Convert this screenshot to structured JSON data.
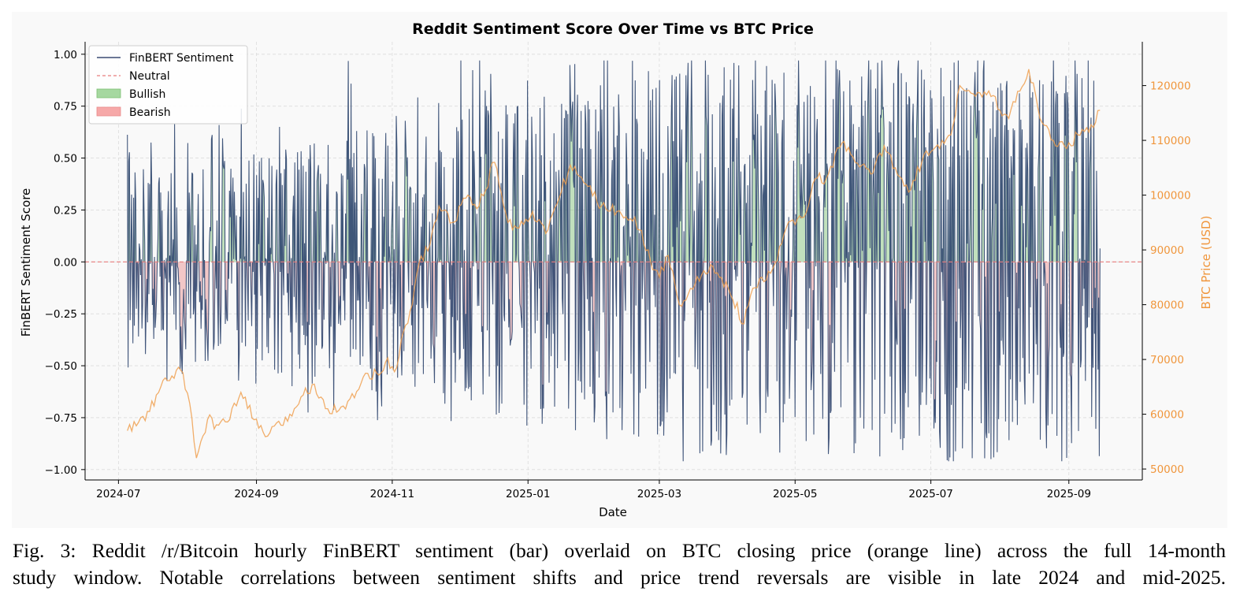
{
  "chart_data": {
    "type": "line",
    "title": "Reddit Sentiment Score Over Time vs BTC Price",
    "xlabel": "Date",
    "ylabel": "FinBERT Sentiment Score",
    "y2label": "BTC Price (USD)",
    "xlim": [
      "2024-06-16",
      "2025-10-04"
    ],
    "ylim": [
      -1.05,
      1.06
    ],
    "y2lim": [
      48000,
      128000
    ],
    "x_ticks": [
      "2024-07",
      "2024-09",
      "2024-11",
      "2025-01",
      "2025-03",
      "2025-05",
      "2025-07",
      "2025-09"
    ],
    "y_ticks": [
      -1.0,
      -0.75,
      -0.5,
      -0.25,
      0.0,
      0.25,
      0.5,
      0.75,
      1.0
    ],
    "y_tick_labels": [
      "−1.00",
      "−0.75",
      "−0.50",
      "−0.25",
      "0.00",
      "0.25",
      "0.50",
      "0.75",
      "1.00"
    ],
    "y2_ticks": [
      50000,
      60000,
      70000,
      80000,
      90000,
      100000,
      110000,
      120000
    ],
    "grid": true,
    "legend_position": "top-left",
    "legend": [
      "FinBERT Sentiment",
      "Neutral",
      "Bullish",
      "Bearish"
    ],
    "neutral_line": 0.0,
    "sentiment_range": [
      "2024-07-05",
      "2025-09-15"
    ],
    "sentiment_bounds": [
      -0.96,
      0.97
    ],
    "series": [
      {
        "name": "BTC Price (USD)",
        "axis": "right",
        "x": [
          "2024-07-05",
          "2024-07-10",
          "2024-07-15",
          "2024-07-20",
          "2024-07-25",
          "2024-07-29",
          "2024-08-02",
          "2024-08-05",
          "2024-08-10",
          "2024-08-15",
          "2024-08-20",
          "2024-08-25",
          "2024-08-31",
          "2024-09-06",
          "2024-09-12",
          "2024-09-18",
          "2024-09-22",
          "2024-09-27",
          "2024-10-03",
          "2024-10-10",
          "2024-10-15",
          "2024-10-20",
          "2024-10-25",
          "2024-10-29",
          "2024-11-03",
          "2024-11-06",
          "2024-11-10",
          "2024-11-13",
          "2024-11-18",
          "2024-11-22",
          "2024-11-28",
          "2024-12-05",
          "2024-12-10",
          "2024-12-17",
          "2024-12-23",
          "2024-12-28",
          "2025-01-03",
          "2025-01-09",
          "2025-01-15",
          "2025-01-20",
          "2025-01-27",
          "2025-02-03",
          "2025-02-10",
          "2025-02-18",
          "2025-02-25",
          "2025-03-01",
          "2025-03-05",
          "2025-03-10",
          "2025-03-15",
          "2025-03-25",
          "2025-04-01",
          "2025-04-08",
          "2025-04-12",
          "2025-04-18",
          "2025-04-22",
          "2025-04-27",
          "2025-05-05",
          "2025-05-10",
          "2025-05-15",
          "2025-05-22",
          "2025-05-28",
          "2025-06-05",
          "2025-06-10",
          "2025-06-15",
          "2025-06-22",
          "2025-06-28",
          "2025-07-05",
          "2025-07-10",
          "2025-07-14",
          "2025-07-20",
          "2025-07-28",
          "2025-08-05",
          "2025-08-10",
          "2025-08-14",
          "2025-08-19",
          "2025-08-25",
          "2025-08-31",
          "2025-09-05",
          "2025-09-10",
          "2025-09-15"
        ],
        "values": [
          57000,
          58500,
          60500,
          65000,
          67000,
          68000,
          62000,
          52000,
          59000,
          58000,
          59000,
          64000,
          59000,
          56000,
          58000,
          61000,
          63500,
          65500,
          61000,
          61500,
          63000,
          67500,
          67500,
          69500,
          68500,
          75000,
          80000,
          87500,
          91000,
          98000,
          95000,
          100000,
          98000,
          106000,
          95000,
          94000,
          97000,
          93000,
          99500,
          105500,
          102000,
          98000,
          97000,
          96000,
          88000,
          85000,
          89000,
          80000,
          83000,
          87000,
          83000,
          76500,
          83000,
          84500,
          87500,
          94000,
          96000,
          103000,
          103000,
          109500,
          106000,
          104000,
          109000,
          105000,
          101000,
          107500,
          108500,
          111000,
          120000,
          118500,
          118000,
          114000,
          119000,
          123000,
          114000,
          110000,
          108500,
          111000,
          111500,
          115500
        ]
      }
    ]
  },
  "caption": "Fig. 3: Reddit /r/Bitcoin hourly FinBERT sentiment (bar) overlaid on BTC closing price (orange line) across the full 14-month study window. Notable correlations between sentiment shifts and price trend reversals are visible in late 2024 and mid-2025.",
  "caption_line1": "Fig. 3: Reddit /r/Bitcoin hourly FinBERT sentiment (bar) overlaid on BTC closing price (orange line) across the full 14-month",
  "caption_line2": "study window. Notable correlations between sentiment shifts and price trend reversals are visible in late 2024 and mid-2025."
}
